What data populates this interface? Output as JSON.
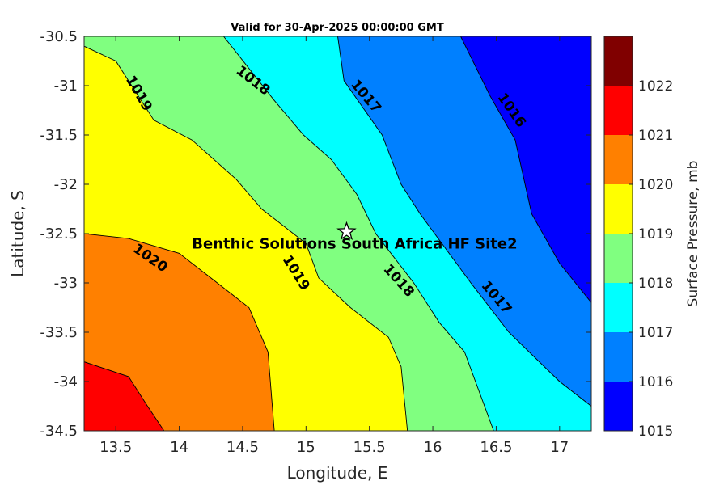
{
  "chart_data": {
    "type": "contour",
    "title": "Valid for 30-Apr-2025 00:00:00 GMT",
    "xlabel": "Longitude, E",
    "ylabel": "Latitude, S",
    "xlim": [
      13.25,
      17.25
    ],
    "ylim": [
      -34.5,
      -30.5
    ],
    "xticks": [
      13.5,
      14,
      14.5,
      15,
      15.5,
      16,
      16.5,
      17
    ],
    "yticks": [
      -30.5,
      -31,
      -31.5,
      -32,
      -32.5,
      -33,
      -33.5,
      -34,
      -34.5
    ],
    "colorbar": {
      "label": "Surface Pressure, mb",
      "levels": [
        1015,
        1016,
        1017,
        1018,
        1019,
        1020,
        1021,
        1022
      ],
      "colors": [
        "#0000ff",
        "#0080ff",
        "#00ffff",
        "#80ff80",
        "#ffff00",
        "#ff8000",
        "#ff0000",
        "#800000"
      ]
    },
    "contours": [
      {
        "level": 1016,
        "points": [
          [
            16.22,
            -30.5
          ],
          [
            16.45,
            -31.1
          ],
          [
            16.65,
            -31.55
          ],
          [
            16.78,
            -32.3
          ],
          [
            17.0,
            -32.8
          ],
          [
            17.25,
            -33.2
          ]
        ]
      },
      {
        "level": 1017,
        "points": [
          [
            15.25,
            -30.5
          ],
          [
            15.3,
            -30.95
          ],
          [
            15.6,
            -31.5
          ],
          [
            15.75,
            -32.0
          ],
          [
            15.9,
            -32.3
          ],
          [
            16.3,
            -33.0
          ],
          [
            16.6,
            -33.5
          ],
          [
            17.0,
            -34.0
          ],
          [
            17.25,
            -34.25
          ]
        ]
      },
      {
        "level": 1018,
        "points": [
          [
            14.35,
            -30.5
          ],
          [
            14.75,
            -31.15
          ],
          [
            14.98,
            -31.5
          ],
          [
            15.2,
            -31.75
          ],
          [
            15.4,
            -32.1
          ],
          [
            15.55,
            -32.5
          ],
          [
            15.85,
            -33.0
          ],
          [
            16.05,
            -33.4
          ],
          [
            16.25,
            -33.7
          ],
          [
            16.48,
            -34.5
          ]
        ]
      },
      {
        "level": 1019,
        "points": [
          [
            13.25,
            -30.6
          ],
          [
            13.5,
            -30.75
          ],
          [
            13.8,
            -31.35
          ],
          [
            14.1,
            -31.55
          ],
          [
            14.45,
            -31.95
          ],
          [
            14.65,
            -32.25
          ],
          [
            15.0,
            -32.6
          ],
          [
            15.1,
            -32.95
          ],
          [
            15.35,
            -33.25
          ],
          [
            15.65,
            -33.55
          ],
          [
            15.75,
            -33.85
          ],
          [
            15.8,
            -34.5
          ]
        ]
      },
      {
        "level": 1020,
        "points": [
          [
            13.25,
            -32.5
          ],
          [
            13.6,
            -32.55
          ],
          [
            14.0,
            -32.7
          ],
          [
            14.3,
            -33.0
          ],
          [
            14.55,
            -33.25
          ],
          [
            14.7,
            -33.7
          ],
          [
            14.75,
            -34.5
          ]
        ]
      },
      {
        "level": 1021,
        "points": [
          [
            13.25,
            -33.8
          ],
          [
            13.6,
            -33.95
          ],
          [
            13.75,
            -34.25
          ],
          [
            13.88,
            -34.5
          ]
        ]
      }
    ],
    "contour_labels": [
      {
        "text": "1019",
        "lon": 13.68,
        "lat": -31.08,
        "angle": 60
      },
      {
        "text": "1018",
        "lon": 14.58,
        "lat": -30.95,
        "angle": 38
      },
      {
        "text": "1017",
        "lon": 15.47,
        "lat": -31.11,
        "angle": 50
      },
      {
        "text": "1016",
        "lon": 16.62,
        "lat": -31.25,
        "angle": 55
      },
      {
        "text": "1020",
        "lon": 13.77,
        "lat": -32.75,
        "angle": 35
      },
      {
        "text": "1019",
        "lon": 14.92,
        "lat": -32.9,
        "angle": 58
      },
      {
        "text": "1018",
        "lon": 15.73,
        "lat": -32.98,
        "angle": 48
      },
      {
        "text": "1017",
        "lon": 16.5,
        "lat": -33.15,
        "angle": 50
      }
    ],
    "site": {
      "name": "Benthic Solutions South Africa HF Site2",
      "lon": 15.32,
      "lat": -32.48
    }
  }
}
